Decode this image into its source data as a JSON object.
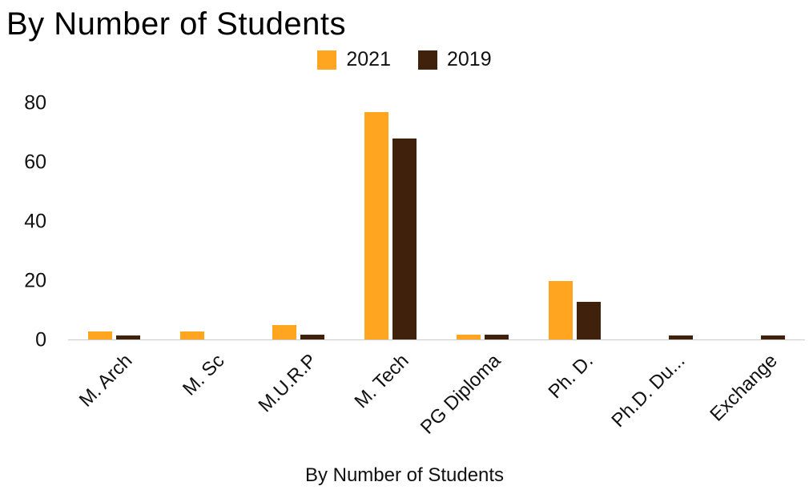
{
  "title": "By Number of Students",
  "legend": {
    "items": [
      {
        "label": "2021",
        "color": "#FFA520"
      },
      {
        "label": "2019",
        "color": "#40210B"
      }
    ]
  },
  "chart_data": {
    "type": "bar",
    "title": "By Number of Students",
    "xlabel": "By Number of Students",
    "ylabel": "",
    "categories": [
      "M. Arch",
      "M. Sc",
      "M.U.R.P",
      "M. Tech",
      "PG Diploma",
      "Ph. D.",
      "Ph.D. Du...",
      "Exchange"
    ],
    "series": [
      {
        "name": "2021",
        "color": "#FFA520",
        "values": [
          3,
          3,
          5,
          77,
          2,
          20,
          0,
          0
        ]
      },
      {
        "name": "2019",
        "color": "#40210B",
        "values": [
          1.5,
          0,
          2,
          68,
          2,
          13,
          1.5,
          1.5
        ]
      }
    ],
    "yticks": [
      0,
      20,
      40,
      60,
      80
    ],
    "ylim": [
      0,
      85
    ],
    "grid": false,
    "legend_position": "top"
  }
}
